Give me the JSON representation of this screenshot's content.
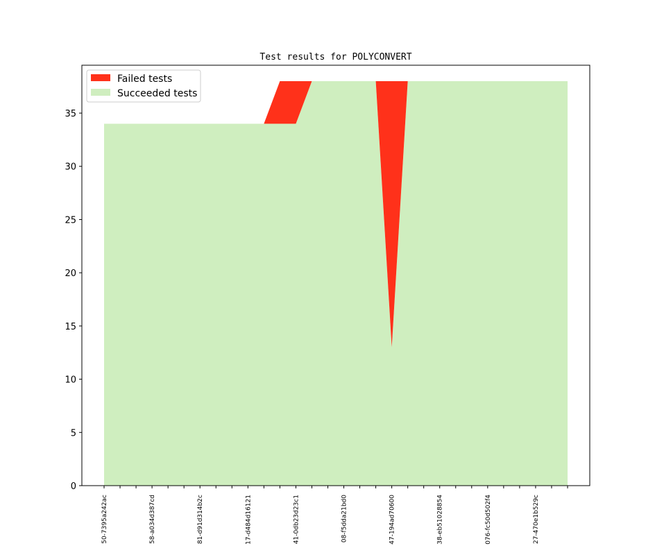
{
  "chart_data": {
    "type": "area",
    "stacked": true,
    "title": "Test results for POLYCONVERT",
    "xlabel": "",
    "ylabel": "",
    "ylim": [
      0,
      39.5
    ],
    "yticks": [
      0,
      5,
      10,
      15,
      20,
      25,
      30,
      35
    ],
    "grid": false,
    "legend_position": "top-left",
    "x_count": 30,
    "xtick_labels": [
      {
        "index": 0,
        "label": "50-7395a242ac"
      },
      {
        "index": 3,
        "label": "58-a034d387cd"
      },
      {
        "index": 6,
        "label": "81-d91d314b2c"
      },
      {
        "index": 9,
        "label": "17-d484d16121"
      },
      {
        "index": 12,
        "label": "41-0db23d23c1"
      },
      {
        "index": 15,
        "label": "08-f5dda21bd0"
      },
      {
        "index": 18,
        "label": "47-194ad70600"
      },
      {
        "index": 21,
        "label": "38-eb51028854"
      },
      {
        "index": 24,
        "label": "076-fc50d502f4"
      },
      {
        "index": 27,
        "label": "27-470e1b529c"
      }
    ],
    "series": [
      {
        "name": "Succeeded tests",
        "color": "#cfeebf",
        "values": [
          34,
          34,
          34,
          34,
          34,
          34,
          34,
          34,
          34,
          34,
          34,
          34,
          34,
          38,
          38,
          38,
          38,
          38,
          13,
          38,
          38,
          38,
          38,
          38,
          38,
          38,
          38,
          38,
          38,
          38
        ]
      },
      {
        "name": "Failed tests",
        "color": "#ff311a",
        "values": [
          0,
          0,
          0,
          0,
          0,
          0,
          0,
          0,
          0,
          0,
          0,
          4,
          4,
          0,
          0,
          0,
          0,
          0,
          25,
          0,
          0,
          0,
          0,
          0,
          0,
          0,
          0,
          0,
          0,
          0
        ]
      }
    ]
  }
}
